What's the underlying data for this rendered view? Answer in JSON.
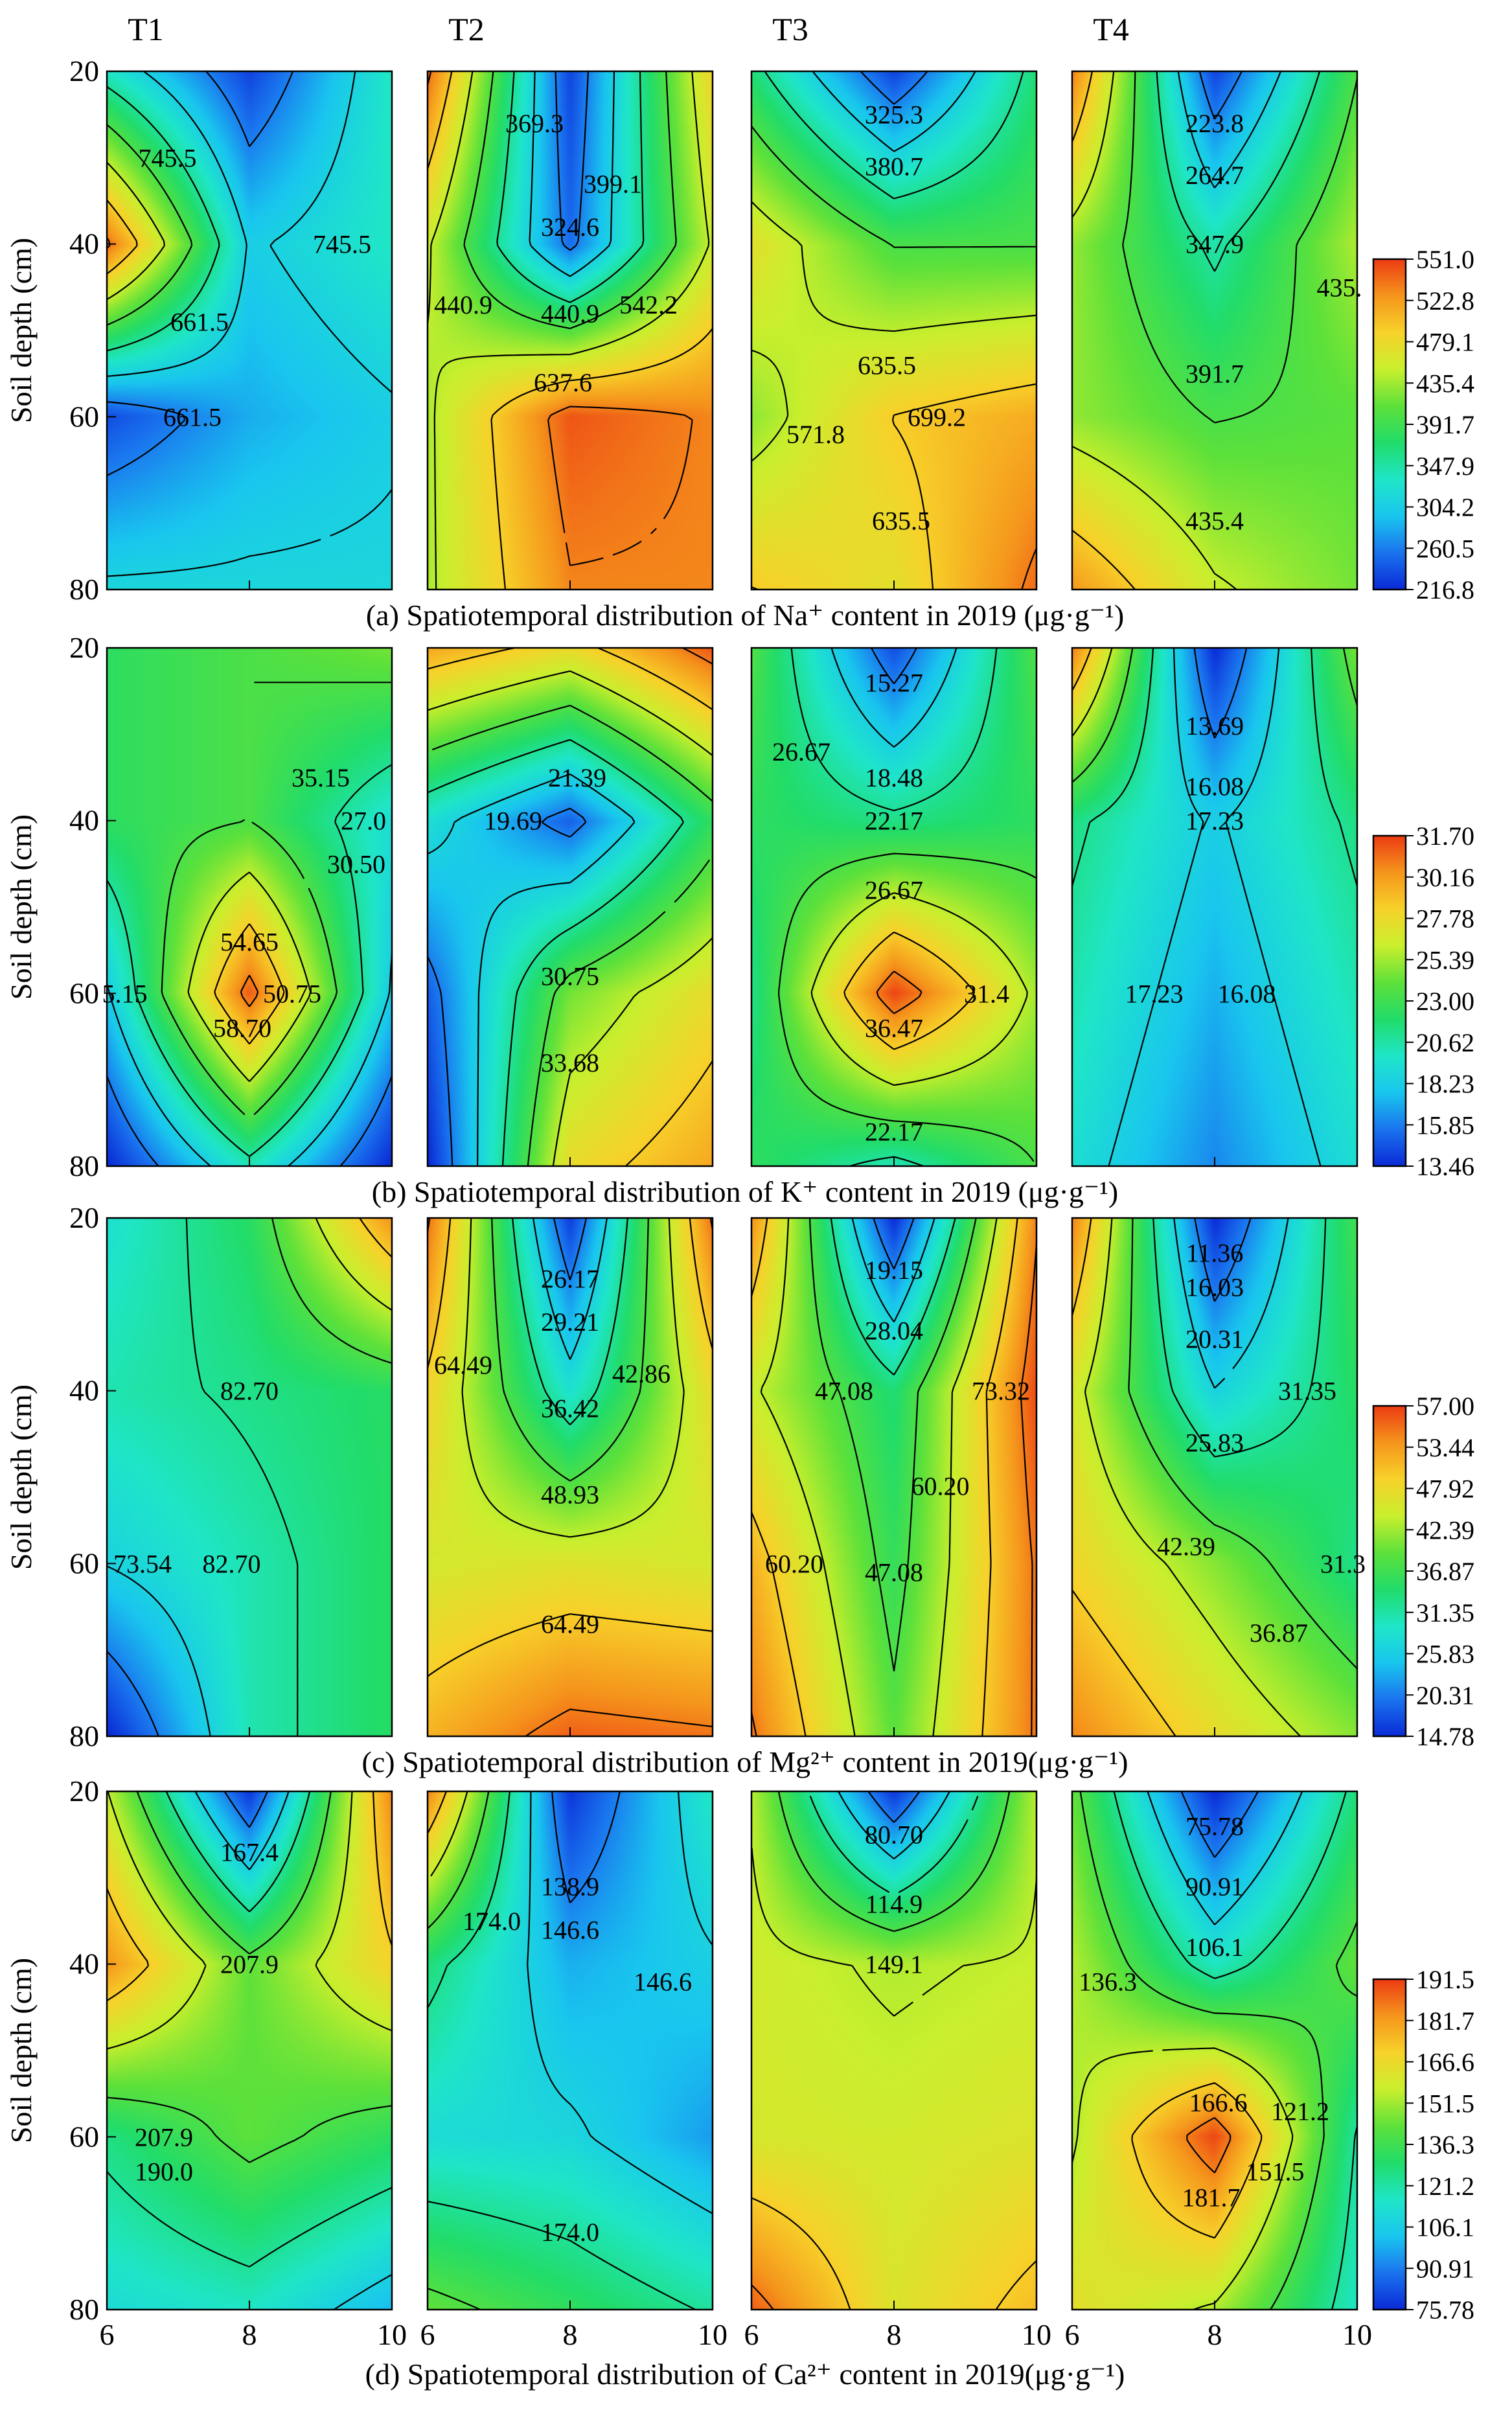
{
  "columns": [
    "T1",
    "T2",
    "T3",
    "T4"
  ],
  "y_axis_label": "Soil depth (cm)",
  "y_ticks": [
    "20",
    "40",
    "60",
    "80"
  ],
  "x_ticks": [
    "6",
    "8",
    "10"
  ],
  "palette": [
    "#0a2ad6",
    "#1a73ee",
    "#19c6ee",
    "#1fe6c8",
    "#21dc6a",
    "#5ee13a",
    "#c9ef2d",
    "#f7d22a",
    "#f5951c",
    "#ec3b13"
  ],
  "chart_data": [
    {
      "type": "heatmap",
      "caption": "(a) Spatiotemporal distribution of Na⁺ content in 2019 (μg·g⁻¹)",
      "x": [
        6,
        8,
        10
      ],
      "y": [
        20,
        40,
        60,
        80
      ],
      "ylabel": "Soil depth (cm)",
      "ylim": [
        20,
        80
      ],
      "xlim": [
        6,
        10
      ],
      "colorbar": [
        "216.8",
        "260.5",
        "304.2",
        "347.9",
        "391.7",
        "435.4",
        "479.1",
        "522.8",
        "551.0"
      ],
      "colorbar_range": [
        216.8,
        551.0
      ],
      "panels": [
        {
          "name": "T1",
          "z": [
            [
              330,
              230,
              330
            ],
            [
              530,
              300,
              330
            ],
            [
              235,
              280,
              300
            ],
            [
              310,
              310,
              310
            ]
          ],
          "contour_labels": [
            {
              "text": "745.5",
              "x": 6.85,
              "y": 30
            },
            {
              "text": "745.5",
              "x": 9.3,
              "y": 40
            },
            {
              "text": "661.5",
              "x": 7.3,
              "y": 49
            },
            {
              "text": "661.5",
              "x": 7.2,
              "y": 60
            }
          ]
        },
        {
          "name": "T2",
          "z": [
            [
              530,
              230,
              470
            ],
            [
              440,
              250,
              440
            ],
            [
              430,
              540,
              520
            ],
            [
              430,
              520,
              520
            ]
          ],
          "contour_labels": [
            {
              "text": "369.3",
              "x": 7.5,
              "y": 26
            },
            {
              "text": "399.1",
              "x": 8.6,
              "y": 33
            },
            {
              "text": "324.6",
              "x": 8.0,
              "y": 38
            },
            {
              "text": "440.9",
              "x": 6.5,
              "y": 47
            },
            {
              "text": "440.9",
              "x": 8.0,
              "y": 48
            },
            {
              "text": "542.2",
              "x": 9.1,
              "y": 47
            },
            {
              "text": "637.6",
              "x": 7.9,
              "y": 56
            }
          ]
        },
        {
          "name": "T3",
          "z": [
            [
              360,
              230,
              360
            ],
            [
              460,
              390,
              390
            ],
            [
              420,
              480,
              500
            ],
            [
              480,
              460,
              530
            ]
          ],
          "contour_labels": [
            {
              "text": "325.3",
              "x": 8.0,
              "y": 25
            },
            {
              "text": "380.7",
              "x": 8.0,
              "y": 31
            },
            {
              "text": "635.5",
              "x": 7.9,
              "y": 54
            },
            {
              "text": "571.8",
              "x": 6.9,
              "y": 62
            },
            {
              "text": "699.2",
              "x": 8.6,
              "y": 60
            },
            {
              "text": "635.5",
              "x": 8.1,
              "y": 72
            }
          ]
        },
        {
          "name": "T4",
          "z": [
            [
              520,
              230,
              390
            ],
            [
              420,
              340,
              430
            ],
            [
              420,
              390,
              400
            ],
            [
              510,
              440,
              410
            ]
          ],
          "contour_labels": [
            {
              "text": "223.8",
              "x": 8.0,
              "y": 26
            },
            {
              "text": "264.7",
              "x": 8.0,
              "y": 32
            },
            {
              "text": "347.9",
              "x": 8.0,
              "y": 40
            },
            {
              "text": "435.",
              "x": 9.75,
              "y": 45
            },
            {
              "text": "391.7",
              "x": 8.0,
              "y": 55
            },
            {
              "text": "435.4",
              "x": 8.0,
              "y": 72
            }
          ]
        }
      ]
    },
    {
      "type": "heatmap",
      "caption": "(b) Spatiotemporal distribution of K⁺ content in 2019 (μg·g⁻¹)",
      "x": [
        6,
        8,
        10
      ],
      "y": [
        20,
        40,
        60,
        80
      ],
      "ylabel": "Soil depth (cm)",
      "ylim": [
        20,
        80
      ],
      "xlim": [
        6,
        10
      ],
      "colorbar": [
        "13.46",
        "15.85",
        "18.23",
        "20.62",
        "23.00",
        "25.39",
        "27.78",
        "30.16",
        "31.70"
      ],
      "colorbar_range": [
        13.46,
        31.7
      ],
      "panels": [
        {
          "name": "T1",
          "z": [
            [
              22,
              23,
              24
            ],
            [
              22,
              23,
              19
            ],
            [
              18,
              31,
              18
            ],
            [
              13.5,
              20,
              13.5
            ]
          ],
          "contour_labels": [
            {
              "text": "35.15",
              "x": 9.0,
              "y": 35
            },
            {
              "text": "27.0",
              "x": 9.6,
              "y": 40
            },
            {
              "text": "30.50",
              "x": 9.5,
              "y": 45
            },
            {
              "text": "54.65",
              "x": 8.0,
              "y": 54
            },
            {
              "text": "5.15",
              "x": 6.25,
              "y": 60
            },
            {
              "text": "50.75",
              "x": 8.6,
              "y": 60
            },
            {
              "text": "58.70",
              "x": 7.9,
              "y": 64
            }
          ]
        },
        {
          "name": "T2",
          "z": [
            [
              29,
              27,
              31
            ],
            [
              19,
              15,
              22
            ],
            [
              15,
              24,
              27
            ],
            [
              13.5,
              27,
              29
            ]
          ],
          "contour_labels": [
            {
              "text": "21.39",
              "x": 8.1,
              "y": 35
            },
            {
              "text": "19.69",
              "x": 7.2,
              "y": 40
            },
            {
              "text": "30.75",
              "x": 8.0,
              "y": 58
            },
            {
              "text": "33.68",
              "x": 8.0,
              "y": 68
            }
          ]
        },
        {
          "name": "T3",
          "z": [
            [
              23,
              14.5,
              23
            ],
            [
              22,
              21,
              22
            ],
            [
              21,
              31.5,
              25
            ],
            [
              22,
              20,
              23
            ]
          ],
          "contour_labels": [
            {
              "text": "15.27",
              "x": 8.0,
              "y": 24
            },
            {
              "text": "26.67",
              "x": 6.7,
              "y": 32
            },
            {
              "text": "18.48",
              "x": 8.0,
              "y": 35
            },
            {
              "text": "22.17",
              "x": 8.0,
              "y": 40
            },
            {
              "text": "26.67",
              "x": 8.0,
              "y": 48
            },
            {
              "text": "36.47",
              "x": 8.0,
              "y": 64
            },
            {
              "text": "31.4",
              "x": 9.3,
              "y": 60
            },
            {
              "text": "22.17",
              "x": 8.0,
              "y": 76
            }
          ]
        },
        {
          "name": "T4",
          "z": [
            [
              30,
              13.5,
              24
            ],
            [
              21,
              18,
              21
            ],
            [
              20,
              17,
              20
            ],
            [
              19,
              16,
              19
            ]
          ],
          "contour_labels": [
            {
              "text": "13.69",
              "x": 8.0,
              "y": 29
            },
            {
              "text": "16.08",
              "x": 8.0,
              "y": 36
            },
            {
              "text": "17.23",
              "x": 8.0,
              "y": 40
            },
            {
              "text": "17.23",
              "x": 7.15,
              "y": 60
            },
            {
              "text": "16.08",
              "x": 8.45,
              "y": 60
            }
          ]
        }
      ]
    },
    {
      "type": "heatmap",
      "caption": "(c) Spatiotemporal distribution of Mg²⁺ content in 2019(μg·g⁻¹)",
      "x": [
        6,
        8,
        10
      ],
      "y": [
        20,
        40,
        60,
        80
      ],
      "ylabel": "Soil depth (cm)",
      "ylim": [
        20,
        80
      ],
      "xlim": [
        6,
        10
      ],
      "colorbar": [
        "14.78",
        "20.31",
        "25.83",
        "31.35",
        "36.87",
        "42.39",
        "47.92",
        "53.44",
        "57.00"
      ],
      "colorbar_range": [
        14.78,
        57.0
      ],
      "panels": [
        {
          "name": "T1",
          "z": [
            [
              28,
              34,
              52
            ],
            [
              30,
              32,
              34
            ],
            [
              26,
              30,
              34
            ],
            [
              14.8,
              30,
              34
            ]
          ],
          "contour_labels": [
            {
              "text": "82.70",
              "x": 8.0,
              "y": 40
            },
            {
              "text": "73.54",
              "x": 6.5,
              "y": 60
            },
            {
              "text": "82.70",
              "x": 7.75,
              "y": 60
            }
          ]
        },
        {
          "name": "T2",
          "z": [
            [
              54,
              16,
              54
            ],
            [
              47,
              28,
              46
            ],
            [
              44,
              45,
              44
            ],
            [
              50,
              55,
              54
            ]
          ],
          "contour_labels": [
            {
              "text": "26.17",
              "x": 8.0,
              "y": 27
            },
            {
              "text": "29.21",
              "x": 8.0,
              "y": 32
            },
            {
              "text": "64.49",
              "x": 6.5,
              "y": 37
            },
            {
              "text": "42.86",
              "x": 9.0,
              "y": 38
            },
            {
              "text": "36.42",
              "x": 8.0,
              "y": 42
            },
            {
              "text": "48.93",
              "x": 8.0,
              "y": 52
            },
            {
              "text": "64.49",
              "x": 8.0,
              "y": 67
            }
          ]
        },
        {
          "name": "T3",
          "z": [
            [
              52,
              15,
              53
            ],
            [
              43,
              33,
              56
            ],
            [
              50,
              35,
              54
            ],
            [
              54,
              38,
              54
            ]
          ],
          "contour_labels": [
            {
              "text": "19.15",
              "x": 8.0,
              "y": 26
            },
            {
              "text": "28.04",
              "x": 8.0,
              "y": 33
            },
            {
              "text": "47.08",
              "x": 7.3,
              "y": 40
            },
            {
              "text": "73.32",
              "x": 9.5,
              "y": 40
            },
            {
              "text": "60.20",
              "x": 8.65,
              "y": 51
            },
            {
              "text": "60.20",
              "x": 6.6,
              "y": 60
            },
            {
              "text": "47.08",
              "x": 8.0,
              "y": 61
            }
          ]
        },
        {
          "name": "T4",
          "z": [
            [
              53,
              15,
              36
            ],
            [
              44,
              26,
              34
            ],
            [
              47,
              40,
              32
            ],
            [
              53,
              46,
              40
            ]
          ],
          "contour_labels": [
            {
              "text": "11.36",
              "x": 8.0,
              "y": 24
            },
            {
              "text": "16.03",
              "x": 8.0,
              "y": 28
            },
            {
              "text": "20.31",
              "x": 8.0,
              "y": 34
            },
            {
              "text": "25.83",
              "x": 8.0,
              "y": 46
            },
            {
              "text": "31.35",
              "x": 9.3,
              "y": 40
            },
            {
              "text": "42.39",
              "x": 7.6,
              "y": 58
            },
            {
              "text": "31.3",
              "x": 9.8,
              "y": 60
            },
            {
              "text": "36.87",
              "x": 8.9,
              "y": 68
            }
          ]
        }
      ]
    },
    {
      "type": "heatmap",
      "caption": "(d) Spatiotemporal distribution of Ca²⁺ content in 2019(μg·g⁻¹)",
      "x": [
        6,
        8,
        10
      ],
      "y": [
        20,
        40,
        60,
        80
      ],
      "xlabel": "",
      "ylabel": "Soil depth (cm)",
      "ylim": [
        20,
        80
      ],
      "xlim": [
        6,
        10
      ],
      "colorbar": [
        "75.78",
        "90.91",
        "106.1",
        "121.2",
        "136.3",
        "151.5",
        "166.6",
        "181.7",
        "191.5"
      ],
      "colorbar_range": [
        75.78,
        191.5
      ],
      "panels": [
        {
          "name": "T1",
          "z": [
            [
              152,
              78,
              180
            ],
            [
              178,
              140,
              165
            ],
            [
              124,
              140,
              130
            ],
            [
              110,
              115,
              100
            ]
          ],
          "contour_labels": [
            {
              "text": "167.4",
              "x": 8.0,
              "y": 27
            },
            {
              "text": "207.9",
              "x": 8.0,
              "y": 40
            },
            {
              "text": "207.9",
              "x": 6.8,
              "y": 60
            },
            {
              "text": "190.0",
              "x": 6.8,
              "y": 64
            }
          ]
        },
        {
          "name": "T2",
          "z": [
            [
              180,
              78,
              115
            ],
            [
              125,
              98,
              105
            ],
            [
              110,
              108,
              95
            ],
            [
              140,
              130,
              120
            ]
          ],
          "contour_labels": [
            {
              "text": "138.9",
              "x": 8.0,
              "y": 31
            },
            {
              "text": "174.0",
              "x": 6.9,
              "y": 35
            },
            {
              "text": "146.6",
              "x": 8.0,
              "y": 36
            },
            {
              "text": "146.6",
              "x": 9.3,
              "y": 42
            },
            {
              "text": "174.0",
              "x": 8.0,
              "y": 71
            }
          ]
        },
        {
          "name": "T3",
          "z": [
            [
              150,
              78,
              150
            ],
            [
              155,
              150,
              153
            ],
            [
              156,
              155,
              158
            ],
            [
              186,
              158,
              170
            ]
          ],
          "contour_labels": [
            {
              "text": "80.70",
              "x": 8.0,
              "y": 25
            },
            {
              "text": "114.9",
              "x": 8.0,
              "y": 33
            },
            {
              "text": "149.1",
              "x": 8.0,
              "y": 40
            }
          ]
        },
        {
          "name": "T4",
          "z": [
            [
              140,
              76,
              125
            ],
            [
              150,
              115,
              140
            ],
            [
              150,
              190,
              120
            ],
            [
              160,
              150,
              115
            ]
          ],
          "contour_labels": [
            {
              "text": "75.78",
              "x": 8.0,
              "y": 24
            },
            {
              "text": "90.91",
              "x": 8.0,
              "y": 31
            },
            {
              "text": "106.1",
              "x": 8.0,
              "y": 38
            },
            {
              "text": "136.3",
              "x": 6.5,
              "y": 42
            },
            {
              "text": "166.6",
              "x": 8.05,
              "y": 56
            },
            {
              "text": "121.2",
              "x": 9.2,
              "y": 57
            },
            {
              "text": "151.5",
              "x": 8.85,
              "y": 64
            },
            {
              "text": "181.7",
              "x": 7.95,
              "y": 67
            }
          ]
        }
      ]
    }
  ]
}
